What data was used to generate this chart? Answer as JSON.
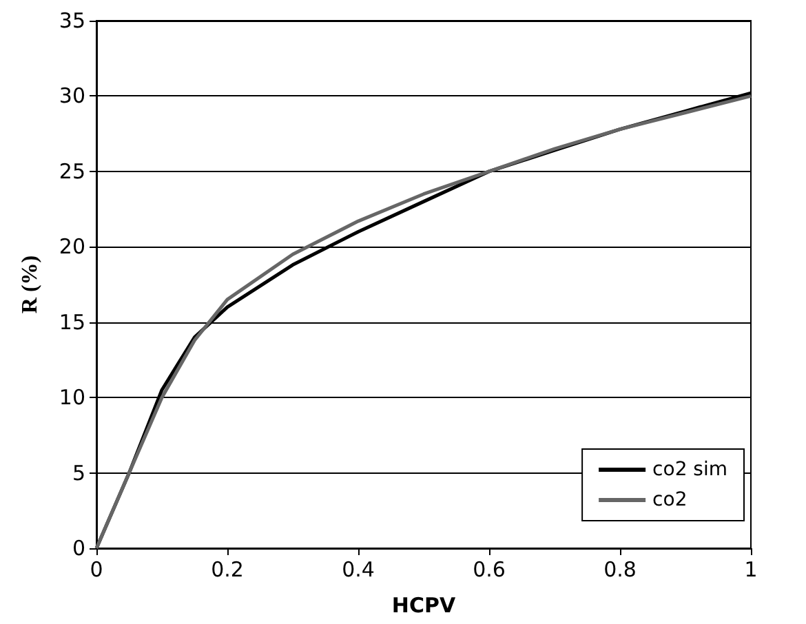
{
  "chart_data": {
    "type": "line",
    "xlabel": "HCPV",
    "ylabel": "R (%)",
    "xlim": [
      0,
      1
    ],
    "xticks": [
      0,
      0.2,
      0.4,
      0.6,
      0.8,
      1
    ],
    "ylim": [
      0,
      35
    ],
    "yticks": [
      0,
      5,
      10,
      15,
      20,
      25,
      30,
      35
    ],
    "grid": "y",
    "legend": "bottom right",
    "marker": "none",
    "line_style": "solid",
    "series": [
      {
        "name": "co2 sim",
        "color": "#000000",
        "x": [
          0,
          0.05,
          0.1,
          0.15,
          0.2,
          0.3,
          0.4,
          0.5,
          0.6,
          0.7,
          0.8,
          0.9,
          1
        ],
        "values": [
          0,
          5,
          10.5,
          14,
          16,
          18.8,
          21,
          23,
          25,
          26.4,
          27.8,
          29,
          30.2
        ]
      },
      {
        "name": "co2",
        "color": "#666666",
        "x": [
          0,
          0.05,
          0.1,
          0.15,
          0.2,
          0.3,
          0.4,
          0.5,
          0.6,
          0.7,
          0.8,
          0.9,
          1
        ],
        "values": [
          0,
          5,
          10,
          13.8,
          16.5,
          19.5,
          21.7,
          23.5,
          25,
          26.5,
          27.8,
          28.9,
          30
        ]
      }
    ]
  }
}
